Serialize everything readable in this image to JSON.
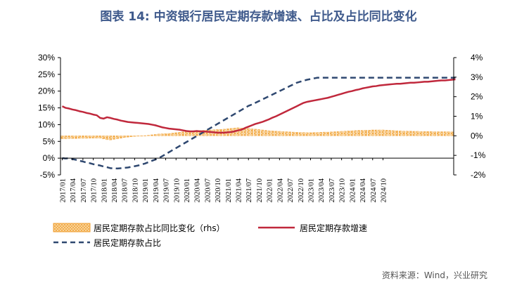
{
  "title": "图表 14: 中资银行居民定期存款增速、占比及占比同比变化",
  "source": "资料来源：Wind，兴业研究",
  "colors": {
    "bars": "#f2a33a",
    "bars_fill": "#f9dfb0",
    "growth_line": "#c0283c",
    "share_line": "#2f4870",
    "title": "#3f5a8c"
  },
  "chart_data": {
    "type": "bar+line",
    "y_left": {
      "min": -0.05,
      "max": 0.3,
      "ticks": [
        "-5%",
        "0%",
        "5%",
        "10%",
        "15%",
        "20%",
        "25%",
        "30%"
      ]
    },
    "y_right": {
      "min": -0.02,
      "max": 0.04,
      "ticks": [
        "-2%",
        "-1%",
        "0%",
        "1%",
        "2%",
        "3%",
        "4%"
      ]
    },
    "x_tick_labels": [
      "2017/01",
      "2017/04",
      "2017/07",
      "2017/10",
      "2018/01",
      "2018/04",
      "2018/07",
      "2018/10",
      "2019/01",
      "2019/04",
      "2019/07",
      "2019/10",
      "2020/01",
      "2020/04",
      "2020/07",
      "2020/10",
      "2021/01",
      "2021/04",
      "2021/07",
      "2021/10",
      "2022/01",
      "2022/04",
      "2022/07",
      "2022/10",
      "2023/01",
      "2023/04",
      "2023/07",
      "2023/10",
      "2024/01",
      "2024/04",
      "2024/07",
      "2024/10"
    ],
    "series": [
      {
        "name": "居民定期存款占比同比变化（rhs）",
        "type": "bar",
        "axis": "right",
        "values": [
          -0.0015,
          -0.0015,
          -0.0014,
          -0.0014,
          -0.0014,
          -0.0013,
          -0.0013,
          -0.0013,
          -0.0012,
          -0.0012,
          -0.0012,
          -0.0012,
          -0.0016,
          -0.002,
          -0.0021,
          -0.0018,
          -0.0015,
          -0.0012,
          -0.0009,
          -0.0007,
          -0.0005,
          -0.0003,
          -0.0002,
          -0.0001,
          0.0001,
          0.0003,
          0.0005,
          0.0007,
          0.0009,
          0.001,
          0.0011,
          0.0012,
          0.0014,
          0.0016,
          0.0018,
          0.002,
          0.0022,
          0.0024,
          0.0025,
          0.0026,
          0.0027,
          0.0028,
          0.0029,
          0.003,
          0.0031,
          0.0032,
          0.0033,
          0.0034,
          0.0036,
          0.0038,
          0.004,
          0.0041,
          0.004,
          0.0039,
          0.0038,
          0.0036,
          0.0034,
          0.0032,
          0.003,
          0.0028,
          0.0026,
          0.0025,
          0.0024,
          0.0023,
          0.0022,
          0.0021,
          0.002,
          0.0019,
          0.0018,
          0.0017,
          0.0017,
          0.0016,
          0.0016,
          0.0017,
          0.0017,
          0.0018,
          0.0019,
          0.0019,
          0.002,
          0.0021,
          0.0022,
          0.0023,
          0.0024,
          0.0025,
          0.0026,
          0.0027,
          0.0028,
          0.0028,
          0.0029,
          0.0029,
          0.003,
          0.003,
          0.003,
          0.003,
          0.0029,
          0.0028,
          0.0027,
          0.0026,
          0.0025,
          0.0024,
          0.0024,
          0.0024,
          0.0023,
          0.0023,
          0.0022,
          0.0022,
          0.0022,
          0.0022,
          0.0021,
          0.0021,
          0.0021,
          0.0021,
          0.0021,
          0.002
        ]
      },
      {
        "name": "居民定期存款增速",
        "type": "line",
        "axis": "left",
        "values": [
          0.155,
          0.15,
          0.148,
          0.145,
          0.143,
          0.14,
          0.138,
          0.135,
          0.133,
          0.13,
          0.128,
          0.12,
          0.118,
          0.122,
          0.12,
          0.117,
          0.115,
          0.112,
          0.11,
          0.108,
          0.107,
          0.106,
          0.105,
          0.104,
          0.103,
          0.102,
          0.1,
          0.098,
          0.095,
          0.092,
          0.09,
          0.088,
          0.087,
          0.086,
          0.085,
          0.083,
          0.081,
          0.08,
          0.08,
          0.081,
          0.08,
          0.08,
          0.079,
          0.078,
          0.077,
          0.076,
          0.076,
          0.076,
          0.077,
          0.078,
          0.08,
          0.083,
          0.085,
          0.09,
          0.094,
          0.098,
          0.102,
          0.105,
          0.108,
          0.112,
          0.116,
          0.121,
          0.125,
          0.13,
          0.135,
          0.14,
          0.145,
          0.15,
          0.155,
          0.16,
          0.165,
          0.168,
          0.17,
          0.172,
          0.174,
          0.176,
          0.178,
          0.18,
          0.183,
          0.186,
          0.189,
          0.192,
          0.195,
          0.198,
          0.2,
          0.203,
          0.205,
          0.208,
          0.21,
          0.212,
          0.214,
          0.215,
          0.217,
          0.218,
          0.219,
          0.22,
          0.221,
          0.222,
          0.222,
          0.223,
          0.224,
          0.225,
          0.225,
          0.226,
          0.227,
          0.228,
          0.228,
          0.229,
          0.23,
          0.231,
          0.232,
          0.232,
          0.233,
          0.234,
          0.235
        ]
      },
      {
        "name": "居民定期存款占比",
        "type": "line",
        "axis": "left",
        "dashed": true,
        "values": [
          0.0,
          -0.001,
          0.0,
          -0.003,
          -0.005,
          -0.008,
          -0.01,
          -0.013,
          -0.015,
          -0.018,
          -0.02,
          -0.022,
          -0.025,
          -0.027,
          -0.03,
          -0.03,
          -0.031,
          -0.03,
          -0.029,
          -0.028,
          -0.026,
          -0.024,
          -0.022,
          -0.019,
          -0.016,
          -0.012,
          -0.008,
          -0.004,
          0.0,
          0.006,
          0.012,
          0.018,
          0.024,
          0.03,
          0.036,
          0.042,
          0.048,
          0.054,
          0.06,
          0.066,
          0.072,
          0.078,
          0.084,
          0.09,
          0.096,
          0.102,
          0.108,
          0.114,
          0.12,
          0.126,
          0.132,
          0.138,
          0.144,
          0.15,
          0.156,
          0.16,
          0.165,
          0.17,
          0.175,
          0.18,
          0.185,
          0.19,
          0.195,
          0.2,
          0.205,
          0.21,
          0.215,
          0.22,
          0.225,
          0.228,
          0.231,
          0.234,
          0.236,
          0.238,
          0.24,
          0.24,
          0.24,
          0.24,
          0.24,
          0.24,
          0.24,
          0.24,
          0.24,
          0.24,
          0.24,
          0.24,
          0.24,
          0.24,
          0.24,
          0.24,
          0.24,
          0.24,
          0.24,
          0.24,
          0.24,
          0.24,
          0.24,
          0.24,
          0.24,
          0.24,
          0.24,
          0.24,
          0.24,
          0.24,
          0.24,
          0.24,
          0.24,
          0.24,
          0.24,
          0.24,
          0.24,
          0.24,
          0.24,
          0.24,
          0.24
        ]
      }
    ]
  }
}
